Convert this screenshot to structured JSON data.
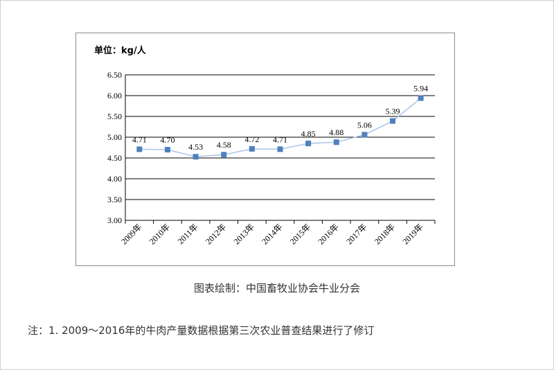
{
  "chart_data": {
    "type": "line",
    "unit_label": "单位：kg/人",
    "categories": [
      "2009年",
      "2010年",
      "2011年",
      "2012年",
      "2013年",
      "2014年",
      "2015年",
      "2016年",
      "2017年",
      "2018年",
      "2019年"
    ],
    "values": [
      4.71,
      4.7,
      4.53,
      4.58,
      4.72,
      4.71,
      4.85,
      4.88,
      5.06,
      5.39,
      5.94
    ],
    "data_labels": [
      "4.71",
      "4.70",
      "4.53",
      "4.58",
      "4.72",
      "4.71",
      "4.85",
      "4.88",
      "5.06",
      "5.39",
      "5.94"
    ],
    "ylim": [
      3.0,
      6.5
    ],
    "yticks": [
      "3.00",
      "3.50",
      "4.00",
      "4.50",
      "5.00",
      "5.50",
      "6.00",
      "6.50"
    ],
    "grid": true,
    "colors": {
      "line": "#a9c4e8",
      "marker": "#4f81bd"
    }
  },
  "caption": "图表绘制：中国畜牧业协会牛业分会",
  "note": "注：1. 2009～2016年的牛肉产量数据根据第三次农业普查结果进行了修订"
}
